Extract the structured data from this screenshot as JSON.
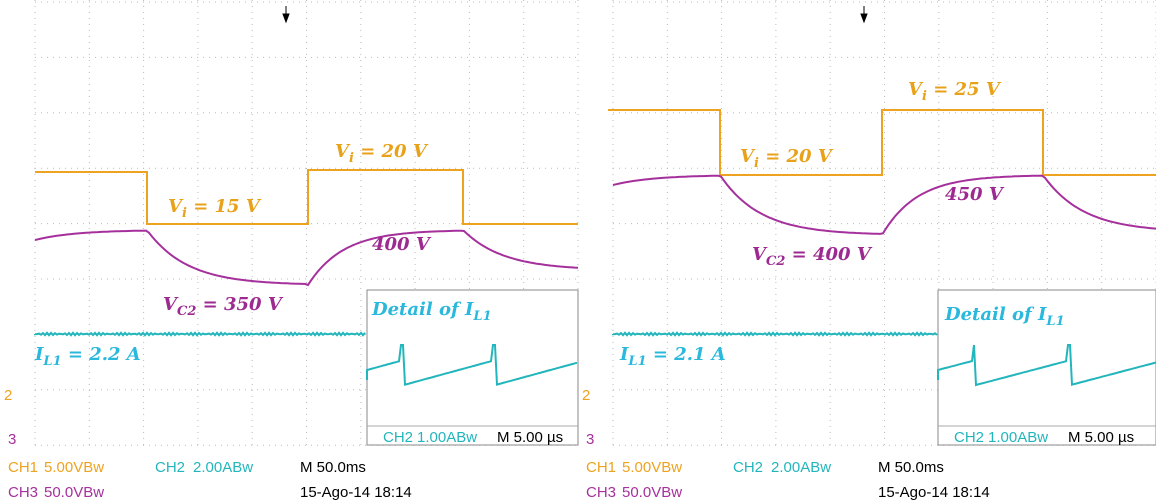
{
  "panels": [
    {
      "labels": [
        {
          "parts": [
            {
              "t": "V"
            },
            {
              "t": "i",
              "sub": true
            },
            {
              "t": " = 20 V"
            }
          ],
          "color": "#e8a21a"
        },
        {
          "parts": [
            {
              "t": "V"
            },
            {
              "t": "i",
              "sub": true
            },
            {
              "t": " = 15 V"
            }
          ],
          "color": "#e8a21a"
        },
        {
          "parts": [
            {
              "t": "400 V"
            }
          ],
          "color": "#9c2a90"
        },
        {
          "parts": [
            {
              "t": "V"
            },
            {
              "t": "C2",
              "sub": true
            },
            {
              "t": " = 350 V"
            }
          ],
          "color": "#9c2a90"
        },
        {
          "parts": [
            {
              "t": "I"
            },
            {
              "t": "L1",
              "sub": true
            },
            {
              "t": " = 2.2 A"
            }
          ],
          "color": "#2ab8dc"
        },
        {
          "parts": [
            {
              "t": "Detail of "
            },
            {
              "t": "I"
            },
            {
              "t": "L1",
              "sub": true
            }
          ],
          "color": "#2ab8dc"
        }
      ],
      "inset": {
        "channel": "CH2",
        "scale": "1.00ABw",
        "time": "M 5.00 µs"
      },
      "markers": [
        "2",
        "3"
      ],
      "footer": {
        "ch1": "CH1",
        "ch1_scale": "5.00VBw",
        "ch2": "CH2",
        "ch2_scale": "2.00ABw",
        "time": "M 50.0ms",
        "ch3": "CH3",
        "ch3_scale": "50.0VBw",
        "date": "15-Ago-14 18:14"
      }
    },
    {
      "labels": [
        {
          "parts": [
            {
              "t": "V"
            },
            {
              "t": "i",
              "sub": true
            },
            {
              "t": " = 25 V"
            }
          ],
          "color": "#e8a21a"
        },
        {
          "parts": [
            {
              "t": "V"
            },
            {
              "t": "i",
              "sub": true
            },
            {
              "t": " = 20 V"
            }
          ],
          "color": "#e8a21a"
        },
        {
          "parts": [
            {
              "t": "450 V"
            }
          ],
          "color": "#9c2a90"
        },
        {
          "parts": [
            {
              "t": "V"
            },
            {
              "t": "C2",
              "sub": true
            },
            {
              "t": " = 400 V"
            }
          ],
          "color": "#9c2a90"
        },
        {
          "parts": [
            {
              "t": "I"
            },
            {
              "t": "L1",
              "sub": true
            },
            {
              "t": " = 2.1 A"
            }
          ],
          "color": "#2ab8dc"
        },
        {
          "parts": [
            {
              "t": "Detail of "
            },
            {
              "t": "I"
            },
            {
              "t": "L1",
              "sub": true
            }
          ],
          "color": "#2ab8dc"
        }
      ],
      "inset": {
        "channel": "CH2",
        "scale": "1.00ABw",
        "time": "M 5.00 µs"
      },
      "markers": [
        "2",
        "3"
      ],
      "footer": {
        "ch1": "CH1",
        "ch1_scale": "5.00VBw",
        "ch2": "CH2",
        "ch2_scale": "2.00ABw",
        "time": "M 50.0ms",
        "ch3": "CH3",
        "ch3_scale": "50.0VBw",
        "date": "15-Ago-14 18:14"
      }
    }
  ]
}
